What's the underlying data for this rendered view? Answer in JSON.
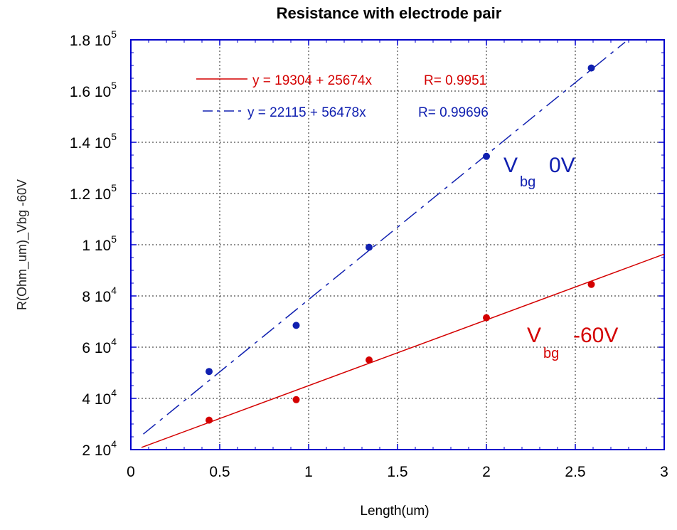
{
  "chart_data": {
    "type": "scatter",
    "title": "Resistance with electrode pair",
    "xlabel": "Length(um)",
    "ylabel": "R(Ohm_um)_Vbg -60V",
    "xlim": [
      0,
      3
    ],
    "ylim": [
      20000,
      180000
    ],
    "grid": true,
    "x_ticks": [
      "0",
      "0.5",
      "1",
      "1.5",
      "2",
      "2.5",
      "3"
    ],
    "y_ticks": [
      {
        "mant": "2 10",
        "exp": "4"
      },
      {
        "mant": "4 10",
        "exp": "4"
      },
      {
        "mant": "6 10",
        "exp": "4"
      },
      {
        "mant": "8 10",
        "exp": "4"
      },
      {
        "mant": "1 10",
        "exp": "5"
      },
      {
        "mant": "1.2 10",
        "exp": "5"
      },
      {
        "mant": "1.4 10",
        "exp": "5"
      },
      {
        "mant": "1.6 10",
        "exp": "5"
      },
      {
        "mant": "1.8 10",
        "exp": "5"
      }
    ],
    "series": [
      {
        "color": "#d40000",
        "line_style": "solid",
        "x": [
          0.44,
          0.93,
          1.34,
          2.0,
          2.59
        ],
        "y": [
          31500,
          39500,
          55000,
          71500,
          84500
        ],
        "fit": {
          "intercept": 19304,
          "slope": 25674,
          "x_range": [
            0.06,
            3.0
          ]
        },
        "legend_eq": "y = 19304 + 25674x",
        "legend_r": "R= 0.9951",
        "label_main": "V",
        "label_sub": "bg",
        "label_tail": "-60V"
      },
      {
        "color": "#1020b0",
        "line_style": "dashed",
        "x": [
          0.44,
          0.93,
          1.34,
          2.0,
          2.59
        ],
        "y": [
          50500,
          68500,
          99000,
          134500,
          169000
        ],
        "fit": {
          "intercept": 22115,
          "slope": 56478,
          "x_range": [
            0.07,
            2.78
          ]
        },
        "legend_eq": "y = 22115 + 56478x",
        "legend_r": "R= 0.99696",
        "label_main": "V",
        "label_sub": "bg",
        "label_tail": "0V"
      }
    ]
  }
}
